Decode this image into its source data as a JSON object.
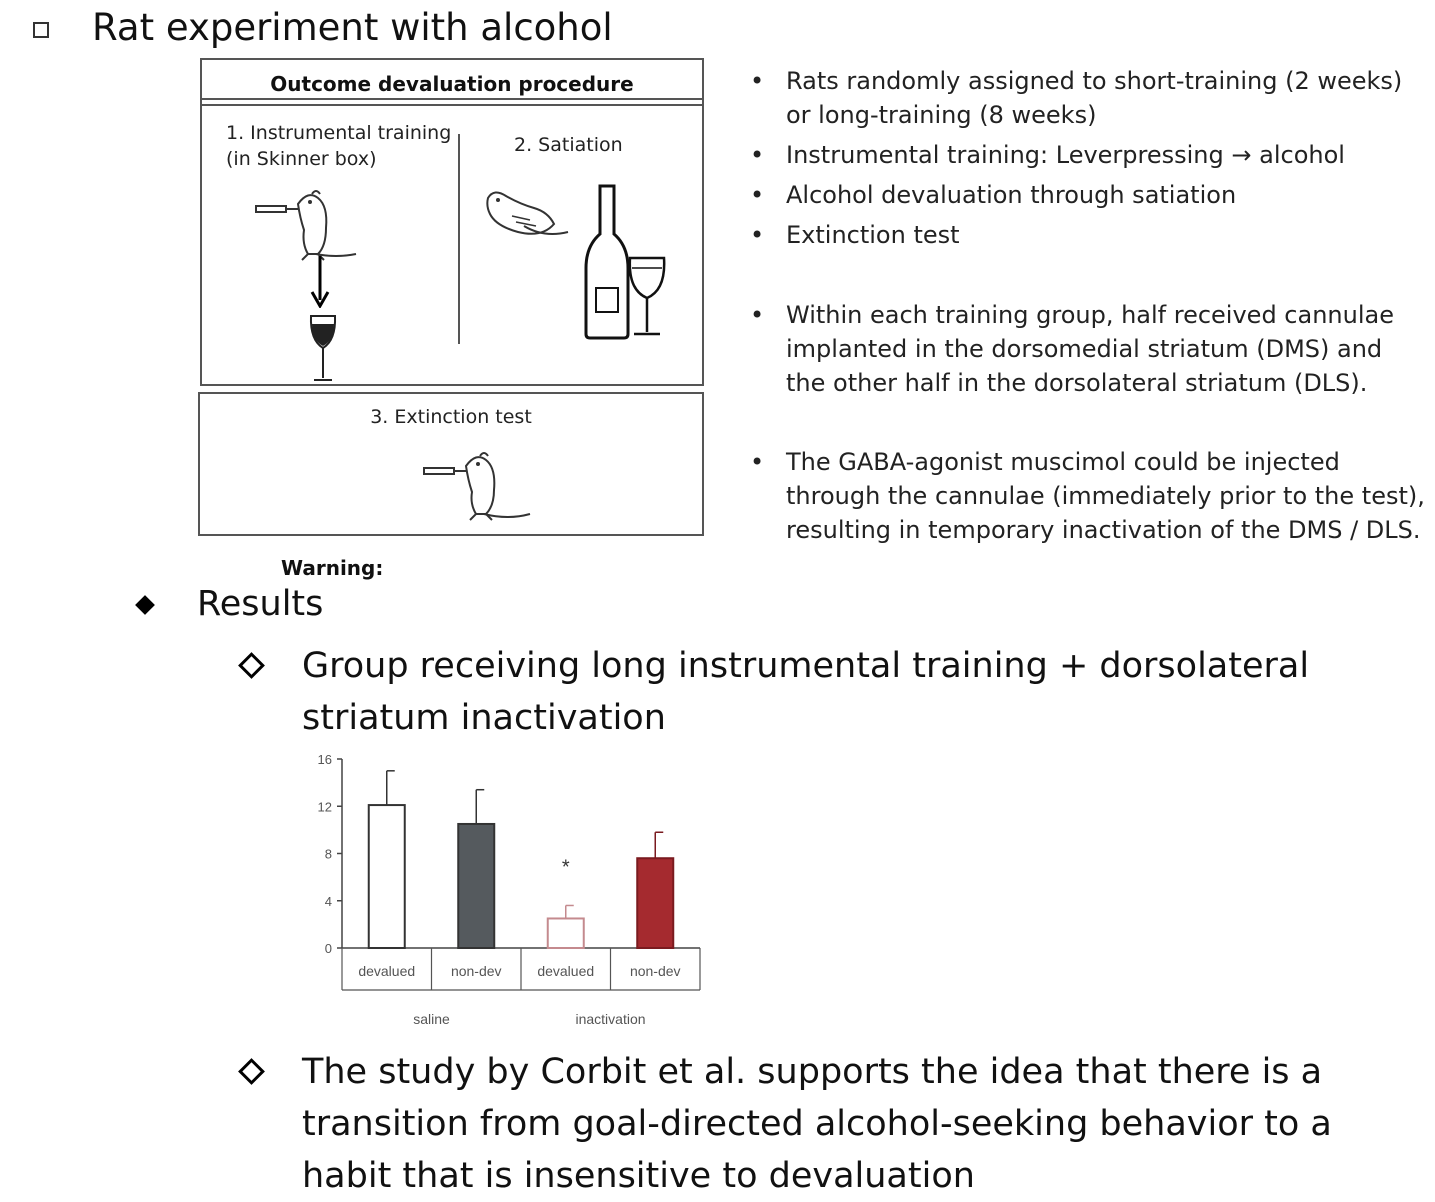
{
  "heading": "Rat experiment with alcohol",
  "procedure": {
    "title": "Outcome devaluation procedure",
    "step1_line1": "1. Instrumental training",
    "step1_line2": "(in Skinner box)",
    "step2": "2. Satiation",
    "step3": "3. Extinction test",
    "warning": "Warning:"
  },
  "bullets": [
    {
      "text": "Rats randomly assigned to short-training (2 weeks) or long-training (8 weeks)"
    },
    {
      "text": "Instrumental training: Leverpressing → alcohol"
    },
    {
      "text": "Alcohol devaluation through satiation"
    },
    {
      "text": "Extinction test"
    },
    {
      "text": "Within each training group, half received cannulae implanted in the dorsomedial striatum (DMS) and the other half in the dorsolateral striatum (DLS)."
    },
    {
      "text": "The GABA-agonist muscimol could be injected through the cannulae (immediately prior to the test), resulting in temporary inactivation of the DMS / DLS."
    }
  ],
  "results": {
    "label": "Results",
    "group_text": "Group receiving long instrumental training + dorsolateral striatum inactivation",
    "study_text": "The study by Corbit et al. supports the idea that there is a transition from goal-directed alcohol-seeking behavior to a habit that is insensitive to devaluation"
  },
  "chart_data": {
    "type": "bar",
    "categories": [
      "devalued",
      "non-dev",
      "devalued",
      "non-dev"
    ],
    "groups": [
      "saline",
      "inactivation"
    ],
    "values": [
      12.1,
      10.5,
      2.5,
      7.6
    ],
    "errors": [
      2.9,
      2.9,
      1.1,
      2.2
    ],
    "bar_colors": [
      "#ffffff",
      "#555a5e",
      "#ffffff",
      "#a52a2f"
    ],
    "bar_outlines": [
      "#333333",
      "#333333",
      "#c48a8e",
      "#7a1a1f"
    ],
    "annotations": [
      {
        "category_index": 2,
        "text": "*"
      }
    ],
    "y_ticks": [
      "0",
      "4",
      "8",
      "12",
      "16"
    ],
    "ylim": [
      0,
      16
    ],
    "title": "",
    "xlabel": "",
    "ylabel": "",
    "grid": false
  }
}
